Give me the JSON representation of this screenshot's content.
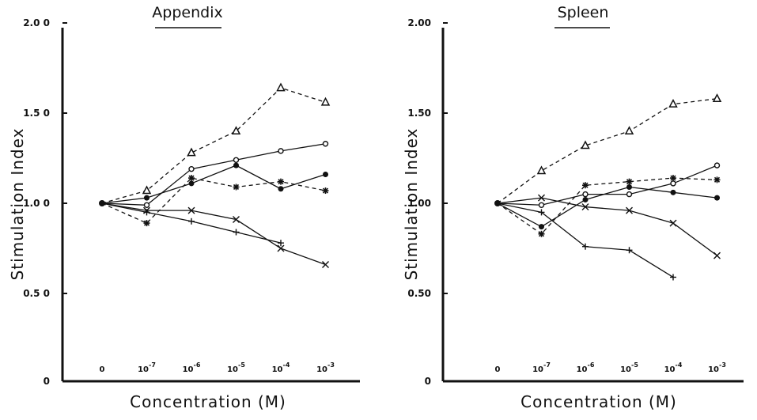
{
  "chart_data": [
    {
      "type": "line",
      "title": "Appendix",
      "xlabel": "Concentration  (M)",
      "ylabel": "Stimulation  Index",
      "categories": [
        "0",
        "10-7",
        "10-6",
        "10-5",
        "10-4",
        "10-3"
      ],
      "y_tick_labels": [
        "0",
        "0.5 0",
        "1.0 0",
        "1.5 0",
        "2.0 0"
      ],
      "y_tick_values": [
        0,
        0.5,
        1.0,
        1.5,
        2.0
      ],
      "ylim": [
        0,
        2.0
      ],
      "grid": false,
      "series": [
        {
          "marker": "triangle",
          "dash": true,
          "values": [
            1.0,
            1.07,
            1.28,
            1.4,
            1.64,
            1.56
          ]
        },
        {
          "marker": "open-circle",
          "dash": false,
          "values": [
            1.0,
            0.99,
            1.19,
            1.24,
            1.29,
            1.33
          ]
        },
        {
          "marker": "filled-circle",
          "dash": false,
          "values": [
            1.0,
            1.03,
            1.11,
            1.21,
            1.08,
            1.16
          ]
        },
        {
          "marker": "asterisk",
          "dash": true,
          "values": [
            1.0,
            0.89,
            1.14,
            1.09,
            1.12,
            1.07
          ]
        },
        {
          "marker": "x",
          "dash": false,
          "values": [
            1.0,
            0.96,
            0.96,
            0.91,
            0.75,
            0.66
          ]
        },
        {
          "marker": "plus",
          "dash": false,
          "values": [
            1.0,
            0.95,
            0.9,
            0.84,
            0.78,
            null
          ]
        }
      ]
    },
    {
      "type": "line",
      "title": "Spleen",
      "xlabel": "Concentration  (M)",
      "ylabel": "Stimulation  Index",
      "categories": [
        "0",
        "10-7",
        "10-6",
        "10-5",
        "10-4",
        "10-3"
      ],
      "y_tick_labels": [
        "0",
        "0.50",
        "1.00",
        "1.50",
        "2.00"
      ],
      "y_tick_values": [
        0,
        0.5,
        1.0,
        1.5,
        2.0
      ],
      "ylim": [
        0,
        2.0
      ],
      "grid": false,
      "series": [
        {
          "marker": "triangle",
          "dash": true,
          "values": [
            1.0,
            1.18,
            1.32,
            1.4,
            1.55,
            1.58
          ]
        },
        {
          "marker": "open-circle",
          "dash": false,
          "values": [
            1.0,
            0.99,
            1.05,
            1.05,
            1.11,
            1.21
          ]
        },
        {
          "marker": "filled-circle",
          "dash": false,
          "values": [
            1.0,
            0.87,
            1.02,
            1.09,
            1.06,
            1.03
          ]
        },
        {
          "marker": "asterisk",
          "dash": true,
          "values": [
            1.0,
            0.83,
            1.1,
            1.12,
            1.14,
            1.13
          ]
        },
        {
          "marker": "x",
          "dash": false,
          "values": [
            1.0,
            1.03,
            0.98,
            0.96,
            0.89,
            0.71
          ]
        },
        {
          "marker": "plus",
          "dash": false,
          "values": [
            1.0,
            0.95,
            0.76,
            0.74,
            0.59,
            null
          ]
        }
      ]
    }
  ]
}
